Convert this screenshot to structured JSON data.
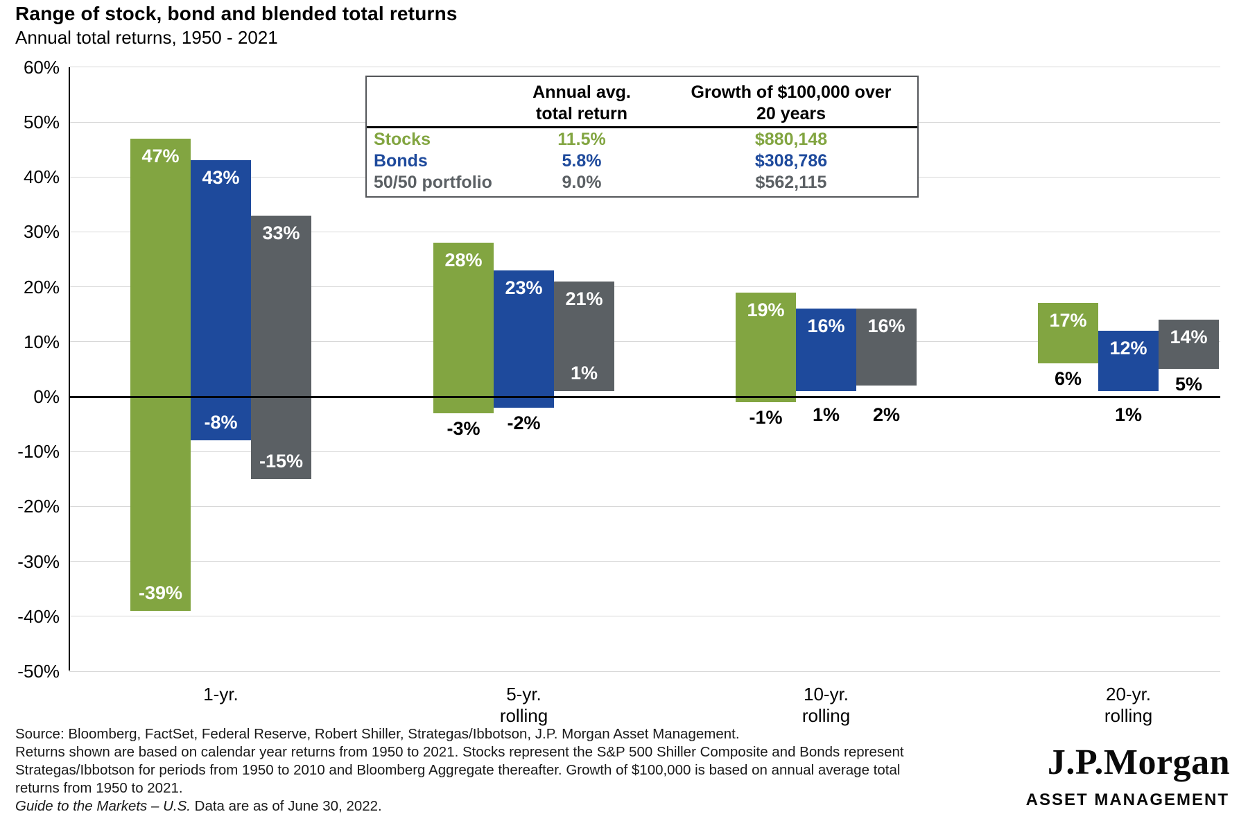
{
  "header": {
    "title": "Range of stock, bond and blended total returns",
    "subtitle": "Annual total returns, 1950 - 2021"
  },
  "colors": {
    "stocks": "#82A541",
    "bonds": "#1E4A9C",
    "blend": "#5B6064",
    "gridline": "#D8D8D8",
    "zero_line": "#000000",
    "bar_label_light": "#FFFFFF",
    "bar_label_dark": "#000000"
  },
  "chart_data": {
    "type": "bar",
    "subtype": "floating-range-bar",
    "title": "Range of stock, bond and blended total returns",
    "subtitle": "Annual total returns, 1950 - 2021",
    "ylim": [
      -50,
      60
    ],
    "ytick_step": 10,
    "grid": true,
    "zero_line": true,
    "legend_position": "none",
    "yticks": [
      {
        "value": 60,
        "label": "60%"
      },
      {
        "value": 50,
        "label": "50%"
      },
      {
        "value": 40,
        "label": "40%"
      },
      {
        "value": 30,
        "label": "30%"
      },
      {
        "value": 20,
        "label": "20%"
      },
      {
        "value": 10,
        "label": "10%"
      },
      {
        "value": 0,
        "label": "0%"
      },
      {
        "value": -10,
        "label": "-10%"
      },
      {
        "value": -20,
        "label": "-20%"
      },
      {
        "value": -30,
        "label": "-30%"
      },
      {
        "value": -40,
        "label": "-40%"
      },
      {
        "value": -50,
        "label": "-50%"
      }
    ],
    "series_names": [
      "Stocks",
      "Bonds",
      "50/50 portfolio"
    ],
    "groups": [
      {
        "category_lines": [
          "1-yr."
        ],
        "bars": [
          {
            "series": "Stocks",
            "key": "stocks",
            "max": 47,
            "min": -39,
            "max_label": "47%",
            "min_label": "-39%",
            "min_label_placement": "inside"
          },
          {
            "series": "Bonds",
            "key": "bonds",
            "max": 43,
            "min": -8,
            "max_label": "43%",
            "min_label": "-8%",
            "min_label_placement": "inside"
          },
          {
            "series": "50/50 portfolio",
            "key": "blend",
            "max": 33,
            "min": -15,
            "max_label": "33%",
            "min_label": "-15%",
            "min_label_placement": "inside"
          }
        ]
      },
      {
        "category_lines": [
          "5-yr.",
          "rolling"
        ],
        "bars": [
          {
            "series": "Stocks",
            "key": "stocks",
            "max": 28,
            "min": -3,
            "max_label": "28%",
            "min_label": "-3%",
            "min_label_placement": "below"
          },
          {
            "series": "Bonds",
            "key": "bonds",
            "max": 23,
            "min": -2,
            "max_label": "23%",
            "min_label": "-2%",
            "min_label_placement": "below"
          },
          {
            "series": "50/50 portfolio",
            "key": "blend",
            "max": 21,
            "min": 1,
            "max_label": "21%",
            "min_label": "1%",
            "min_label_placement": "inside"
          }
        ]
      },
      {
        "category_lines": [
          "10-yr.",
          "rolling"
        ],
        "bars": [
          {
            "series": "Stocks",
            "key": "stocks",
            "max": 19,
            "min": -1,
            "max_label": "19%",
            "min_label": "-1%",
            "min_label_placement": "below"
          },
          {
            "series": "Bonds",
            "key": "bonds",
            "max": 16,
            "min": 1,
            "max_label": "16%",
            "min_label": "1%",
            "min_label_placement": "below"
          },
          {
            "series": "50/50 portfolio",
            "key": "blend",
            "max": 16,
            "min": 2,
            "max_label": "16%",
            "min_label": "2%",
            "min_label_placement": "below"
          }
        ]
      },
      {
        "category_lines": [
          "20-yr.",
          "rolling"
        ],
        "bars": [
          {
            "series": "Stocks",
            "key": "stocks",
            "max": 17,
            "min": 6,
            "max_label": "17%",
            "min_label": "6%",
            "min_label_placement": "below"
          },
          {
            "series": "Bonds",
            "key": "bonds",
            "max": 12,
            "min": 1,
            "max_label": "12%",
            "min_label": "1%",
            "min_label_placement": "below"
          },
          {
            "series": "50/50 portfolio",
            "key": "blend",
            "max": 14,
            "min": 5,
            "max_label": "14%",
            "min_label": "5%",
            "min_label_placement": "below"
          }
        ]
      }
    ]
  },
  "table": {
    "headers": {
      "avg_line1": "Annual avg.",
      "avg_line2": "total return",
      "growth_line1": "Growth of $100,000 over",
      "growth_line2": "20 years"
    },
    "rows": [
      {
        "key": "stocks",
        "label": "Stocks",
        "avg": "11.5%",
        "growth": "$880,148"
      },
      {
        "key": "bonds",
        "label": "Bonds",
        "avg": "5.8%",
        "growth": "$308,786"
      },
      {
        "key": "blend",
        "label": "50/50 portfolio",
        "avg": "9.0%",
        "growth": "$562,115"
      }
    ]
  },
  "footer": {
    "lines": [
      "Source: Bloomberg, FactSet, Federal Reserve, Robert Shiller, Strategas/Ibbotson, J.P. Morgan Asset Management.",
      "Returns shown are based on calendar year returns from 1950 to 2021. Stocks represent the S&P 500 Shiller Composite and Bonds represent",
      "Strategas/Ibbotson for periods from 1950 to 2010 and Bloomberg Aggregate thereafter. Growth of $100,000 is based on annual average total",
      "returns from 1950 to 2021."
    ],
    "gtm_italic": "Guide to the Markets – U.S.",
    "gtm_rest": " Data are as of June 30, 2022."
  },
  "logo": {
    "brand": "J.P.Morgan",
    "sub": "ASSET MANAGEMENT"
  }
}
